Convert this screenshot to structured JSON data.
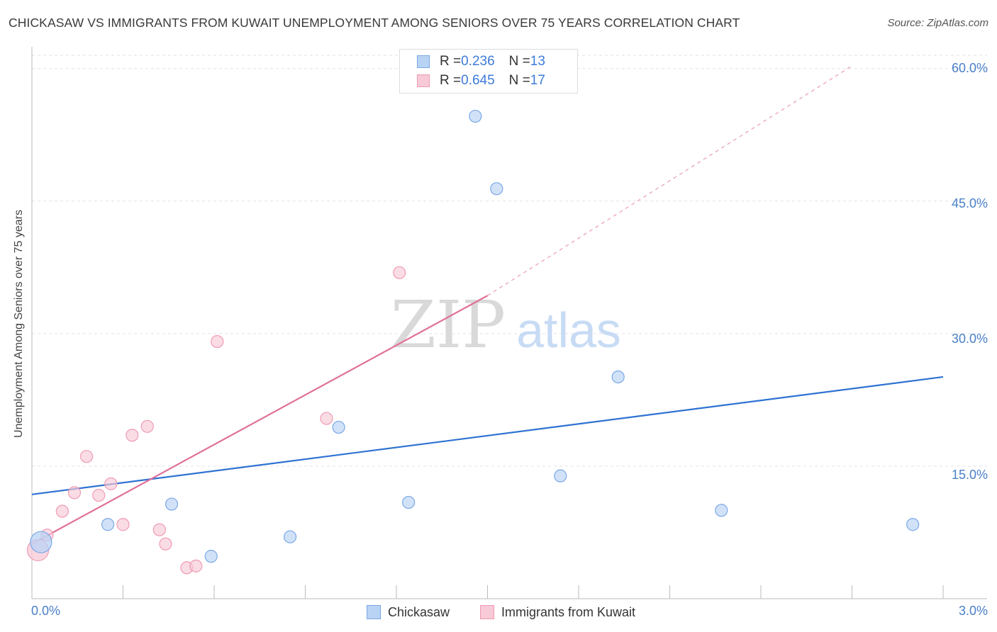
{
  "title": "CHICKASAW VS IMMIGRANTS FROM KUWAIT UNEMPLOYMENT AMONG SENIORS OVER 75 YEARS CORRELATION CHART",
  "source": "Source: ZipAtlas.com",
  "watermark": {
    "zip": "ZIP",
    "atlas": "atlas"
  },
  "colors": {
    "blue_fill": "#b9d3f5",
    "blue_stroke": "#7aa8e6",
    "blue_line": "#2f72d2",
    "pink_fill": "#f8c9d6",
    "pink_stroke": "#ef9bb4",
    "pink_line": "#e0709a",
    "tick_text": "#4a80c8",
    "grid": "#e2e2e2"
  },
  "legend": {
    "rows": [
      {
        "r_label": "R = ",
        "r_value": "0.236",
        "n_label": "N = ",
        "n_value": "13"
      },
      {
        "r_label": "R = ",
        "r_value": "0.645",
        "n_label": "N = ",
        "n_value": "17"
      }
    ]
  },
  "bottom_legend": {
    "series1": "Chickasaw",
    "series2": "Immigrants from Kuwait"
  },
  "chart_data": {
    "type": "scatter",
    "title": "CHICKASAW VS IMMIGRANTS FROM KUWAIT UNEMPLOYMENT AMONG SENIORS OVER 75 YEARS CORRELATION CHART",
    "xlabel": "",
    "ylabel": "Unemployment Among Seniors over 75 years",
    "xlim": [
      0,
      3.0
    ],
    "ylim": [
      0,
      61.5
    ],
    "x_tick_labels": [
      {
        "value": 0,
        "label": "0.0%"
      },
      {
        "value": 3.0,
        "label": "3.0%"
      }
    ],
    "y_tick_labels": [
      {
        "value": 15,
        "label": "15.0%"
      },
      {
        "value": 30,
        "label": "30.0%"
      },
      {
        "value": 45,
        "label": "45.0%"
      },
      {
        "value": 60,
        "label": "60.0%"
      }
    ],
    "x_minor_ticks": [
      0.3,
      0.6,
      0.9,
      1.2,
      1.5,
      1.8,
      2.1,
      2.4,
      2.7,
      3.0
    ],
    "grid": true,
    "legend_position": "top-center",
    "series": [
      {
        "name": "Chickasaw",
        "R": 0.236,
        "N": 13,
        "points": [
          {
            "x": 0.03,
            "y": 6.4,
            "big": true
          },
          {
            "x": 0.25,
            "y": 8.4
          },
          {
            "x": 0.46,
            "y": 10.7
          },
          {
            "x": 0.59,
            "y": 4.8
          },
          {
            "x": 0.85,
            "y": 7.0
          },
          {
            "x": 1.01,
            "y": 19.4
          },
          {
            "x": 1.24,
            "y": 10.9
          },
          {
            "x": 1.46,
            "y": 54.6
          },
          {
            "x": 1.53,
            "y": 46.4
          },
          {
            "x": 1.74,
            "y": 13.9
          },
          {
            "x": 1.93,
            "y": 25.1
          },
          {
            "x": 2.27,
            "y": 10.0
          },
          {
            "x": 2.9,
            "y": 8.4
          }
        ],
        "trend": {
          "x0": 0.0,
          "y0": 11.8,
          "x1": 3.0,
          "y1": 25.1
        }
      },
      {
        "name": "Immigrants from Kuwait",
        "R": 0.645,
        "N": 17,
        "points": [
          {
            "x": 0.02,
            "y": 5.5,
            "big": true
          },
          {
            "x": 0.05,
            "y": 7.2
          },
          {
            "x": 0.1,
            "y": 9.9
          },
          {
            "x": 0.14,
            "y": 12.0
          },
          {
            "x": 0.18,
            "y": 16.1
          },
          {
            "x": 0.22,
            "y": 11.7
          },
          {
            "x": 0.26,
            "y": 13.0
          },
          {
            "x": 0.3,
            "y": 8.4
          },
          {
            "x": 0.33,
            "y": 18.5
          },
          {
            "x": 0.38,
            "y": 19.5
          },
          {
            "x": 0.42,
            "y": 7.8
          },
          {
            "x": 0.44,
            "y": 6.2
          },
          {
            "x": 0.51,
            "y": 3.5
          },
          {
            "x": 0.54,
            "y": 3.7
          },
          {
            "x": 0.61,
            "y": 29.1
          },
          {
            "x": 0.97,
            "y": 20.4
          },
          {
            "x": 1.21,
            "y": 36.9
          }
        ],
        "trend": {
          "x0": 0.0,
          "y0": 6.2,
          "x1": 1.5,
          "y1": 34.3
        },
        "trend_extension": {
          "x0": 1.5,
          "y0": 34.3,
          "x1": 2.7,
          "y1": 60.3
        }
      }
    ]
  }
}
